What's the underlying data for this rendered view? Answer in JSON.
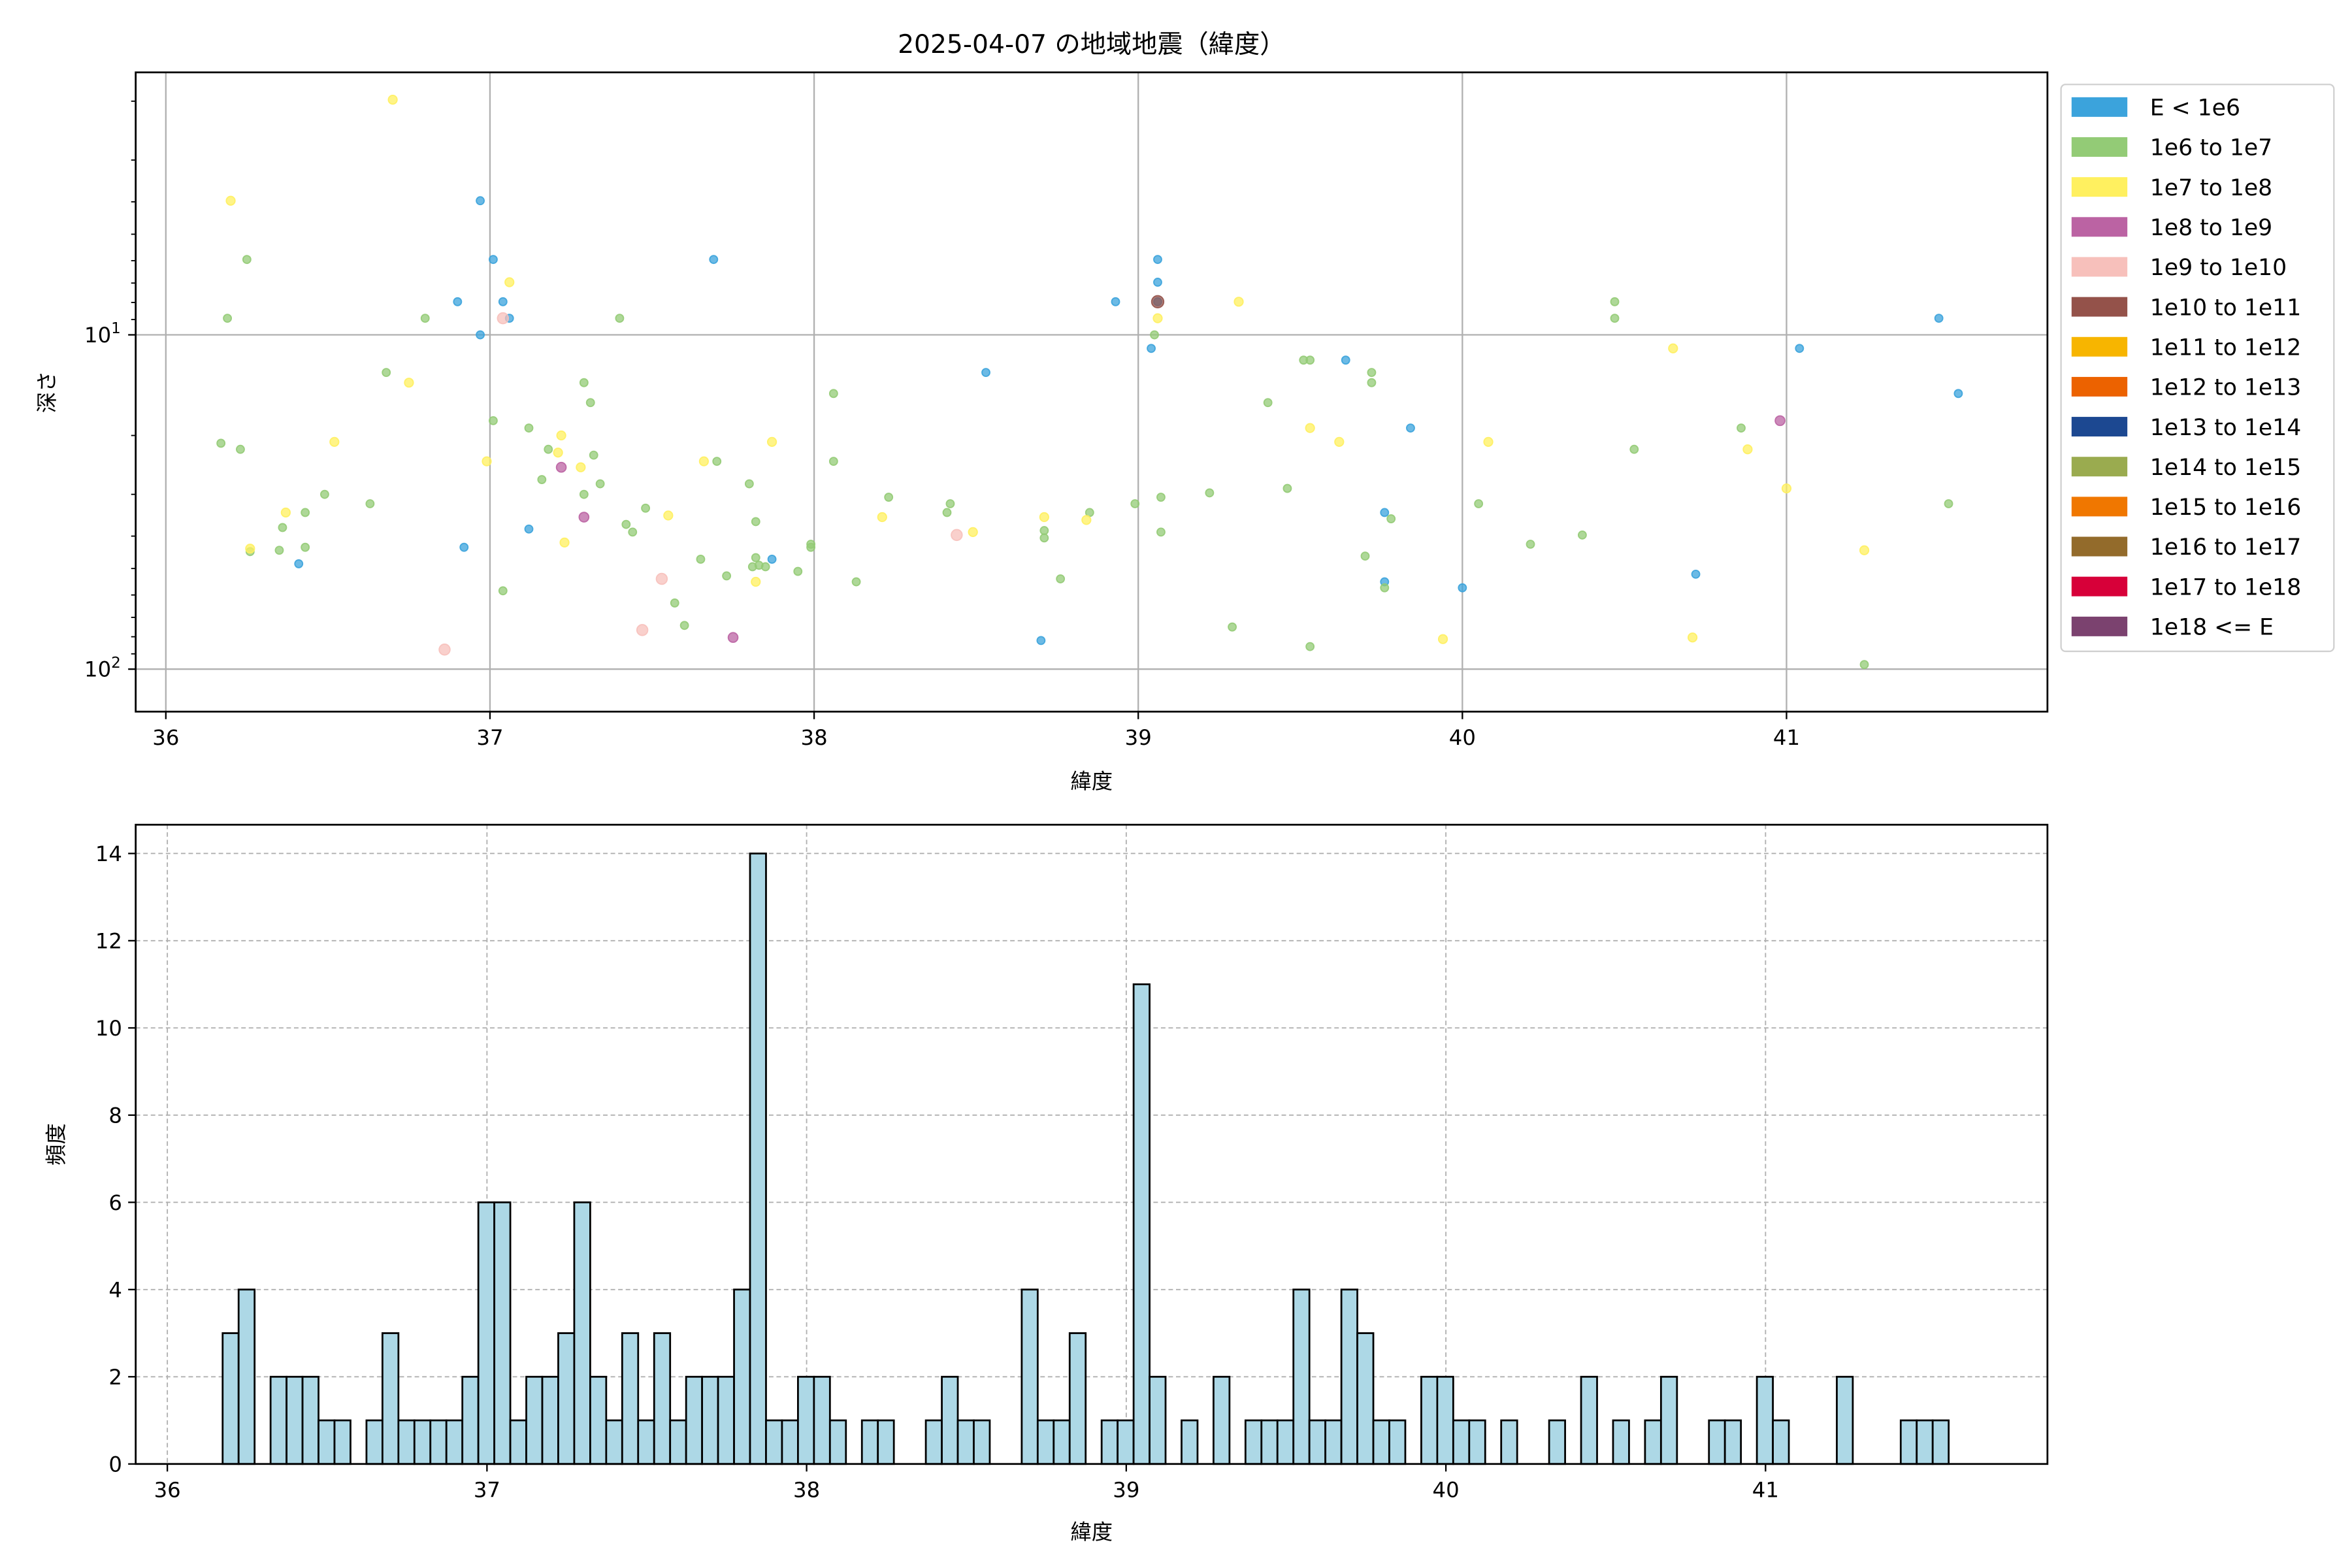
{
  "chart_data": [
    {
      "type": "scatter",
      "title": "2025-04-07 の地域地震（緯度）",
      "xlabel": "緯度",
      "ylabel": "深さ",
      "xlim": [
        35.907,
        41.805
      ],
      "ylim": [
        1.64,
        134
      ],
      "yscale": "log",
      "y_inverted": true,
      "grid": true,
      "legend_placement": "outside-right",
      "x_ticks": [
        "36",
        "37",
        "38",
        "39",
        "40",
        "41"
      ],
      "x_tick_values": [
        36,
        37,
        38,
        39,
        40,
        41
      ],
      "y_ticks": [
        {
          "value": 10,
          "base": "10",
          "exp": "1"
        },
        {
          "value": 100,
          "base": "10",
          "exp": "2"
        }
      ],
      "legend": [
        {
          "label": "E < 1e6",
          "color": "#3ba3dc"
        },
        {
          "label": "1e6 to 1e7",
          "color": "#93cb76"
        },
        {
          "label": "1e7 to 1e8",
          "color": "#fff05f"
        },
        {
          "label": "1e8 to 1e9",
          "color": "#bb63a3"
        },
        {
          "label": "1e9 to 1e10",
          "color": "#f7c0bb"
        },
        {
          "label": "1e10 to 1e11",
          "color": "#94524a"
        },
        {
          "label": "1e11 to 1e12",
          "color": "#f7b500"
        },
        {
          "label": "1e12 to 1e13",
          "color": "#ec6200"
        },
        {
          "label": "1e13 to 1e14",
          "color": "#1c4891"
        },
        {
          "label": "1e14 to 1e15",
          "color": "#9aab4f"
        },
        {
          "label": "1e15 to 1e16",
          "color": "#f07700"
        },
        {
          "label": "1e16 to 1e17",
          "color": "#936b2b"
        },
        {
          "label": "1e17 to 1e18",
          "color": "#d70039"
        },
        {
          "label": "1e18 <= E",
          "color": "#7b426f"
        }
      ],
      "series": [
        {
          "class_index": 0,
          "points": [
            [
              36.97,
              3.97
            ],
            [
              37.01,
              5.95
            ],
            [
              37.04,
              7.96
            ],
            [
              36.9,
              7.96
            ],
            [
              36.97,
              10
            ],
            [
              37.06,
              8.92
            ],
            [
              36.92,
              43.2
            ],
            [
              36.41,
              48.4
            ],
            [
              37.12,
              38.1
            ],
            [
              37.69,
              5.95
            ],
            [
              37.87,
              46.9
            ],
            [
              38.53,
              12.96
            ],
            [
              39.06,
              5.95
            ],
            [
              39.06,
              6.96
            ],
            [
              39.06,
              7.96
            ],
            [
              38.93,
              7.96
            ],
            [
              39.04,
              10.98
            ],
            [
              39.64,
              11.9
            ],
            [
              39.84,
              19.0
            ],
            [
              39.76,
              34.0
            ],
            [
              39.76,
              54.8
            ],
            [
              40.0,
              57.1
            ],
            [
              38.7,
              82.1
            ],
            [
              40.72,
              52.0
            ],
            [
              41.04,
              10.98
            ],
            [
              41.47,
              8.92
            ],
            [
              41.53,
              14.98
            ]
          ]
        },
        {
          "class_index": 1,
          "points": [
            [
              36.19,
              8.92
            ],
            [
              36.25,
              5.95
            ],
            [
              36.8,
              8.92
            ],
            [
              37.4,
              8.92
            ],
            [
              36.17,
              21.1
            ],
            [
              36.23,
              22.0
            ],
            [
              36.68,
              12.96
            ],
            [
              36.63,
              32.0
            ],
            [
              36.49,
              30.0
            ],
            [
              36.43,
              34.0
            ],
            [
              36.36,
              37.7
            ],
            [
              36.35,
              44.1
            ],
            [
              36.43,
              43.2
            ],
            [
              36.26,
              44.5
            ],
            [
              37.01,
              18.06
            ],
            [
              37.04,
              58.3
            ],
            [
              37.12,
              19.0
            ],
            [
              37.18,
              22.0
            ],
            [
              37.16,
              27.1
            ],
            [
              37.29,
              13.9
            ],
            [
              37.31,
              15.95
            ],
            [
              37.32,
              22.9
            ],
            [
              37.29,
              30.0
            ],
            [
              37.34,
              27.9
            ],
            [
              37.42,
              36.9
            ],
            [
              37.44,
              38.9
            ],
            [
              37.48,
              33.0
            ],
            [
              37.57,
              63.4
            ],
            [
              37.6,
              74.0
            ],
            [
              37.65,
              46.9
            ],
            [
              37.7,
              23.9
            ],
            [
              37.73,
              52.6
            ],
            [
              37.8,
              27.9
            ],
            [
              37.82,
              36.2
            ],
            [
              37.82,
              46.4
            ],
            [
              37.83,
              48.9
            ],
            [
              37.85,
              49.4
            ],
            [
              37.81,
              49.4
            ],
            [
              37.95,
              51.0
            ],
            [
              37.99,
              42.3
            ],
            [
              37.99,
              43.2
            ],
            [
              38.06,
              14.98
            ],
            [
              38.06,
              23.9
            ],
            [
              38.13,
              54.8
            ],
            [
              38.23,
              30.6
            ],
            [
              38.41,
              34.0
            ],
            [
              38.42,
              32.0
            ],
            [
              38.71,
              38.5
            ],
            [
              38.71,
              40.5
            ],
            [
              38.76,
              53.7
            ],
            [
              38.85,
              34.0
            ],
            [
              38.99,
              32.0
            ],
            [
              39.07,
              30.6
            ],
            [
              39.07,
              38.9
            ],
            [
              39.22,
              29.7
            ],
            [
              39.29,
              74.8
            ],
            [
              39.4,
              15.95
            ],
            [
              39.46,
              28.8
            ],
            [
              39.51,
              11.9
            ],
            [
              39.53,
              11.9
            ],
            [
              39.53,
              85.6
            ],
            [
              39.72,
              12.96
            ],
            [
              39.72,
              13.9
            ],
            [
              39.7,
              45.9
            ],
            [
              39.78,
              35.5
            ],
            [
              39.76,
              57.1
            ],
            [
              40.05,
              32.0
            ],
            [
              40.21,
              42.3
            ],
            [
              40.37,
              39.7
            ],
            [
              40.47,
              7.96
            ],
            [
              40.47,
              8.92
            ],
            [
              40.53,
              22.0
            ],
            [
              40.86,
              19.0
            ],
            [
              41.24,
              96.9
            ],
            [
              41.5,
              32.0
            ],
            [
              39.05,
              10
            ]
          ]
        },
        {
          "class_index": 2,
          "points": [
            [
              36.2,
              3.97
            ],
            [
              36.7,
              1.98
            ],
            [
              36.75,
              13.9
            ],
            [
              36.52,
              20.9
            ],
            [
              36.26,
              43.6
            ],
            [
              36.37,
              34.0
            ],
            [
              36.99,
              23.9
            ],
            [
              37.06,
              6.96
            ],
            [
              37.22,
              20.0
            ],
            [
              37.21,
              22.5
            ],
            [
              37.28,
              24.9
            ],
            [
              37.23,
              41.8
            ],
            [
              37.55,
              34.7
            ],
            [
              37.66,
              23.9
            ],
            [
              37.87,
              20.9
            ],
            [
              37.82,
              54.8
            ],
            [
              38.21,
              35.1
            ],
            [
              38.49,
              38.9
            ],
            [
              38.71,
              35.1
            ],
            [
              38.84,
              35.8
            ],
            [
              39.06,
              8.92
            ],
            [
              39.31,
              7.96
            ],
            [
              39.53,
              19.0
            ],
            [
              39.62,
              20.9
            ],
            [
              39.94,
              81.3
            ],
            [
              40.08,
              20.9
            ],
            [
              40.65,
              10.98
            ],
            [
              40.71,
              80.4
            ],
            [
              40.88,
              22.0
            ],
            [
              41.0,
              28.8
            ],
            [
              41.24,
              44.1
            ]
          ]
        },
        {
          "class_index": 3,
          "points": [
            [
              37.22,
              24.9
            ],
            [
              37.29,
              35.1
            ],
            [
              37.75,
              80.4
            ],
            [
              40.98,
              18.06
            ]
          ]
        },
        {
          "class_index": 4,
          "points": [
            [
              36.86,
              87.4
            ],
            [
              37.04,
              8.92
            ],
            [
              37.47,
              76.4
            ],
            [
              37.53,
              53.7
            ],
            [
              38.44,
              39.7
            ]
          ]
        },
        {
          "class_index": 5,
          "points": [
            [
              39.06,
              7.96
            ]
          ]
        }
      ]
    },
    {
      "type": "bar",
      "title": "",
      "xlabel": "緯度",
      "ylabel": "頻度",
      "xlim": [
        35.901,
        41.882
      ],
      "ylim": [
        0,
        14.66
      ],
      "grid": true,
      "grid_style": "dashed",
      "bar_color": "#add8e6",
      "edge_color": "#000000",
      "bin_start": 36.173,
      "bin_width": 0.05,
      "x_ticks": [
        "36",
        "37",
        "38",
        "39",
        "40",
        "41"
      ],
      "x_tick_values": [
        36,
        37,
        38,
        39,
        40,
        41
      ],
      "y_ticks": [
        "0",
        "2",
        "4",
        "6",
        "8",
        "10",
        "12",
        "14"
      ],
      "y_tick_values": [
        0,
        2,
        4,
        6,
        8,
        10,
        12,
        14
      ],
      "counts": [
        3,
        4,
        0,
        2,
        2,
        2,
        1,
        1,
        0,
        1,
        3,
        1,
        1,
        1,
        1,
        2,
        6,
        6,
        1,
        2,
        2,
        3,
        6,
        2,
        1,
        3,
        1,
        3,
        1,
        2,
        2,
        2,
        4,
        14,
        1,
        1,
        2,
        2,
        1,
        0,
        1,
        1,
        0,
        0,
        1,
        2,
        1,
        1,
        0,
        0,
        4,
        1,
        1,
        3,
        0,
        1,
        1,
        11,
        2,
        0,
        1,
        0,
        2,
        0,
        1,
        1,
        1,
        4,
        1,
        1,
        4,
        3,
        1,
        1,
        0,
        2,
        2,
        1,
        1,
        0,
        1,
        0,
        0,
        1,
        0,
        2,
        0,
        1,
        0,
        1,
        2,
        0,
        0,
        1,
        1,
        0,
        2,
        1,
        0,
        0,
        0,
        2,
        0,
        0,
        0,
        1,
        1,
        1
      ]
    }
  ]
}
